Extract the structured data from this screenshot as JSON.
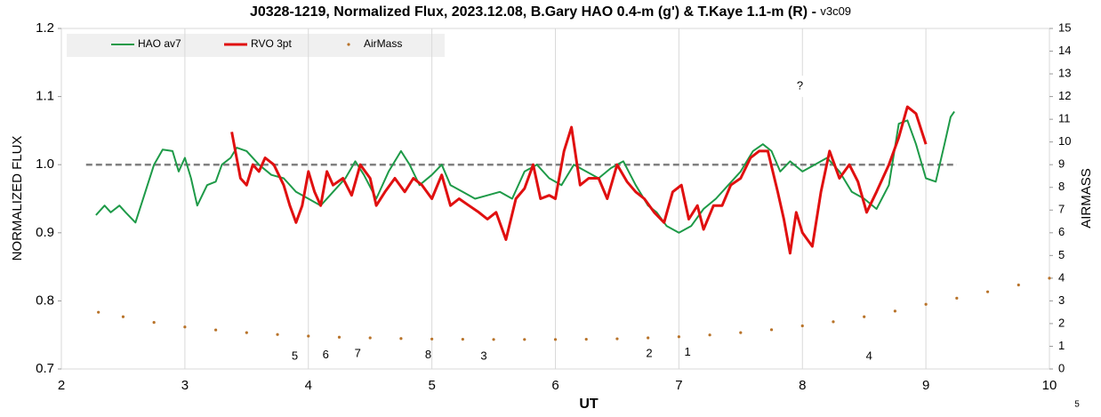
{
  "chart_data": {
    "type": "line",
    "title": "J0328-1219, Normalized Flux, 2023.12.08, B.Gary HAO 0.4-m (g') & T.Kaye 1.1-m (R) - ",
    "version": "v3c09",
    "xlabel": "UT",
    "ylabel": "NORMALIZED FLUX",
    "y2label": "AIRMASS",
    "page_number": "5",
    "xlim": [
      2,
      10
    ],
    "xticks": [
      2,
      3,
      4,
      5,
      6,
      7,
      8,
      9,
      10
    ],
    "ylim": [
      0.7,
      1.2
    ],
    "yticks": [
      0.7,
      0.8,
      0.9,
      {
        "value": 1,
        "label": "1.0"
      },
      1.1,
      1.2
    ],
    "y2lim": [
      0,
      15
    ],
    "y2ticks": [
      0,
      1,
      2,
      3,
      4,
      5,
      6,
      7,
      8,
      9,
      10,
      11,
      12,
      13,
      14,
      15
    ],
    "grid": "x",
    "legend": "top-left",
    "reference_line": {
      "value": 1,
      "x": [
        2.2,
        9.25
      ],
      "color": "#808080"
    },
    "series": [
      {
        "name": "HAO av7",
        "color": "#1e9a48",
        "type": "line",
        "x": [
          2.28,
          2.35,
          2.4,
          2.47,
          2.52,
          2.6,
          2.68,
          2.75,
          2.82,
          2.9,
          2.95,
          3.0,
          3.05,
          3.1,
          3.18,
          3.25,
          3.3,
          3.37,
          3.42,
          3.5,
          3.6,
          3.7,
          3.8,
          3.9,
          4.0,
          4.1,
          4.2,
          4.3,
          4.38,
          4.45,
          4.55,
          4.65,
          4.75,
          4.82,
          4.9,
          5.0,
          5.08,
          5.15,
          5.25,
          5.35,
          5.45,
          5.55,
          5.65,
          5.75,
          5.85,
          5.95,
          6.05,
          6.15,
          6.25,
          6.35,
          6.45,
          6.55,
          6.65,
          6.75,
          6.82,
          6.9,
          7.0,
          7.1,
          7.2,
          7.3,
          7.4,
          7.5,
          7.6,
          7.68,
          7.75,
          7.82,
          7.9,
          8.0,
          8.1,
          8.2,
          8.3,
          8.4,
          8.5,
          8.6,
          8.7,
          8.78,
          8.85,
          8.92,
          9.0,
          9.08,
          9.15,
          9.2,
          9.23
        ],
        "values": [
          0.926,
          0.94,
          0.93,
          0.94,
          0.93,
          0.915,
          0.96,
          1.0,
          1.022,
          1.02,
          0.99,
          1.01,
          0.98,
          0.94,
          0.97,
          0.975,
          1.0,
          1.01,
          1.025,
          1.02,
          1.0,
          0.985,
          0.98,
          0.96,
          0.95,
          0.94,
          0.96,
          0.98,
          1.005,
          0.985,
          0.95,
          0.99,
          1.02,
          1.0,
          0.97,
          0.985,
          1.0,
          0.97,
          0.96,
          0.95,
          0.955,
          0.96,
          0.95,
          0.99,
          1.0,
          0.98,
          0.97,
          1.0,
          0.99,
          0.98,
          0.995,
          1.005,
          0.97,
          0.94,
          0.93,
          0.91,
          0.9,
          0.91,
          0.935,
          0.95,
          0.97,
          0.99,
          1.02,
          1.03,
          1.02,
          0.99,
          1.005,
          0.99,
          1.0,
          1.01,
          0.99,
          0.96,
          0.95,
          0.935,
          0.97,
          1.06,
          1.065,
          1.03,
          0.98,
          0.975,
          1.03,
          1.07,
          1.078
        ]
      },
      {
        "name": "RVO 3pt",
        "color": "#e01010",
        "type": "line",
        "x": [
          3.38,
          3.45,
          3.5,
          3.55,
          3.6,
          3.65,
          3.72,
          3.8,
          3.85,
          3.9,
          3.95,
          4.0,
          4.05,
          4.1,
          4.15,
          4.2,
          4.28,
          4.35,
          4.42,
          4.5,
          4.55,
          4.62,
          4.7,
          4.78,
          4.85,
          4.92,
          5.0,
          5.08,
          5.15,
          5.22,
          5.3,
          5.38,
          5.45,
          5.52,
          5.6,
          5.68,
          5.75,
          5.82,
          5.88,
          5.95,
          6.0,
          6.07,
          6.13,
          6.2,
          6.27,
          6.35,
          6.42,
          6.5,
          6.58,
          6.65,
          6.72,
          6.8,
          6.88,
          6.95,
          7.02,
          7.08,
          7.15,
          7.2,
          7.28,
          7.35,
          7.42,
          7.5,
          7.58,
          7.65,
          7.72,
          7.8,
          7.85,
          7.9,
          7.95,
          8.0,
          8.08,
          8.15,
          8.22,
          8.3,
          8.38,
          8.45,
          8.52,
          8.6,
          8.7,
          8.78,
          8.85,
          8.92,
          9.0
        ],
        "values": [
          1.048,
          0.98,
          0.97,
          1.0,
          0.99,
          1.01,
          1.0,
          0.97,
          0.94,
          0.915,
          0.94,
          0.99,
          0.96,
          0.94,
          0.99,
          0.97,
          0.98,
          0.955,
          1.0,
          0.98,
          0.94,
          0.96,
          0.98,
          0.96,
          0.98,
          0.97,
          0.95,
          0.985,
          0.94,
          0.95,
          0.94,
          0.93,
          0.92,
          0.93,
          0.89,
          0.95,
          0.965,
          1.0,
          0.95,
          0.955,
          0.95,
          1.02,
          1.055,
          0.97,
          0.98,
          0.98,
          0.95,
          1.0,
          0.975,
          0.96,
          0.95,
          0.93,
          0.915,
          0.96,
          0.97,
          0.92,
          0.94,
          0.905,
          0.94,
          0.94,
          0.97,
          0.98,
          1.01,
          1.02,
          1.02,
          0.96,
          0.92,
          0.87,
          0.93,
          0.9,
          0.88,
          0.96,
          1.02,
          0.98,
          1.0,
          0.975,
          0.93,
          0.96,
          1.0,
          1.04,
          1.085,
          1.075,
          1.03
        ]
      },
      {
        "name": "AirMass",
        "color": "#b8732a",
        "type": "scatter",
        "axis": "y2",
        "x": [
          2.3,
          2.5,
          2.75,
          3.0,
          3.25,
          3.5,
          3.75,
          4.0,
          4.25,
          4.5,
          4.75,
          5.0,
          5.25,
          5.5,
          5.75,
          6.0,
          6.25,
          6.5,
          6.75,
          7.0,
          7.25,
          7.5,
          7.75,
          8.0,
          8.25,
          8.5,
          8.75,
          9.0,
          9.25,
          9.5,
          9.75,
          10.0
        ],
        "values": [
          2.5,
          2.3,
          2.05,
          1.85,
          1.72,
          1.6,
          1.52,
          1.45,
          1.4,
          1.37,
          1.34,
          1.32,
          1.31,
          1.3,
          1.3,
          1.3,
          1.31,
          1.33,
          1.37,
          1.42,
          1.5,
          1.6,
          1.73,
          1.9,
          2.08,
          2.3,
          2.55,
          2.85,
          3.12,
          3.4,
          3.7,
          4.0
        ]
      }
    ],
    "annotations": [
      {
        "text": "?",
        "x": 7.98,
        "y": 1.115
      },
      {
        "text": "5",
        "x": 3.89,
        "y": 0.718
      },
      {
        "text": "6",
        "x": 4.14,
        "y": 0.72
      },
      {
        "text": "7",
        "x": 4.4,
        "y": 0.722
      },
      {
        "text": "8",
        "x": 4.97,
        "y": 0.72
      },
      {
        "text": "3",
        "x": 5.42,
        "y": 0.718
      },
      {
        "text": "2",
        "x": 6.76,
        "y": 0.722
      },
      {
        "text": "1",
        "x": 7.07,
        "y": 0.724
      },
      {
        "text": "4",
        "x": 8.54,
        "y": 0.718
      }
    ]
  }
}
